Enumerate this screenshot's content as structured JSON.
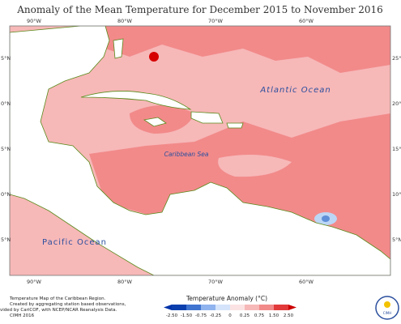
{
  "title": "Anomaly of the Mean Temperature for December 2015 to November 2016",
  "longitude_labels": [
    "90°W",
    "80°W",
    "70°W",
    "60°W"
  ],
  "latitude_labels_left": [
    "5°N",
    "0°N",
    "5°N",
    "0°N",
    "5°N"
  ],
  "latitude_labels_right": [
    "25°N",
    "20°N",
    "15°N",
    "10°N",
    "5°N"
  ],
  "ocean_labels": [
    "Atlantic Ocean",
    "Caribbean Sea",
    "Pacific Ocean"
  ],
  "colorbar": {
    "title": "Temperature Anomaly (°C)",
    "ticks": [
      "-2.50",
      "-1.50",
      "-0.75",
      "-0.25",
      "0",
      "0.25",
      "0.75",
      "1.50",
      "2.50"
    ]
  },
  "footnote": [
    "Temperature Map of the Caribbean Region.",
    "Created by aggregating station based observations,",
    "vided by CariCOF, with NCEP/NCAR Reanalysis Data.",
    "CIMH 2016"
  ],
  "logo": "CIMH"
}
